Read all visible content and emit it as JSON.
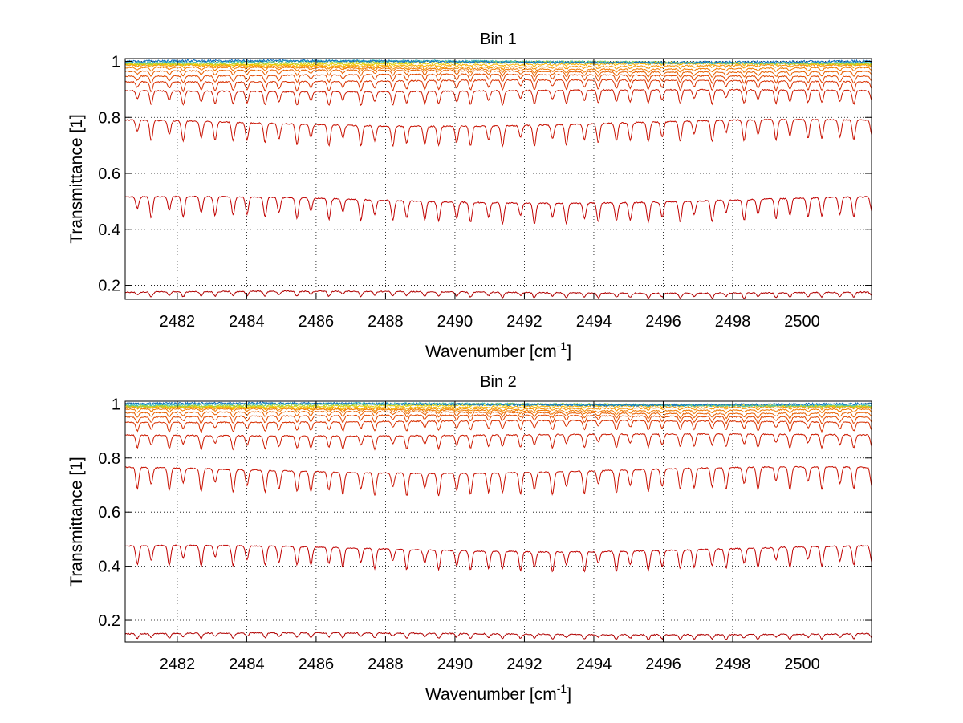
{
  "figure": {
    "chart_data": [
      {
        "type": "line",
        "title": "Bin 1",
        "xlabel": "Wavenumber [cm",
        "xlabel_superscript": "-1",
        "xlabel_suffix": "]",
        "ylabel": "Transmittance [1]",
        "xlim": [
          2480.5,
          2502.0
        ],
        "ylim": [
          0.15,
          1.01
        ],
        "xticks": [
          2482,
          2484,
          2486,
          2488,
          2490,
          2492,
          2494,
          2496,
          2498,
          2500
        ],
        "yticks": [
          0.2,
          0.4,
          0.6,
          0.8,
          1
        ],
        "ytick_labels": [
          "0.2",
          "0.4",
          "0.6",
          "0.8",
          "1"
        ],
        "grid": true,
        "line_spacing_cm1": 0.92,
        "series": [
          {
            "color": "#b00000",
            "baseline": 0.175,
            "dip_depth": 0.018,
            "noise": 0.002
          },
          {
            "color": "#c00000",
            "baseline": 0.505,
            "dip_depth": 0.075,
            "noise": 0.002
          },
          {
            "color": "#c81000",
            "baseline": 0.78,
            "dip_depth": 0.075,
            "noise": 0.002
          },
          {
            "color": "#cc1a00",
            "baseline": 0.895,
            "dip_depth": 0.05,
            "noise": 0.002
          },
          {
            "color": "#d83000",
            "baseline": 0.93,
            "dip_depth": 0.035,
            "noise": 0.002
          },
          {
            "color": "#e04800",
            "baseline": 0.95,
            "dip_depth": 0.025,
            "noise": 0.002
          },
          {
            "color": "#e86000",
            "baseline": 0.965,
            "dip_depth": 0.018,
            "noise": 0.002
          },
          {
            "color": "#f07800",
            "baseline": 0.975,
            "dip_depth": 0.012,
            "noise": 0.002
          },
          {
            "color": "#f59000",
            "baseline": 0.983,
            "dip_depth": 0.008,
            "noise": 0.003
          },
          {
            "color": "#f8b000",
            "baseline": 0.989,
            "dip_depth": 0.005,
            "noise": 0.003
          },
          {
            "color": "#e8d000",
            "baseline": 0.993,
            "dip_depth": 0.003,
            "noise": 0.003
          },
          {
            "color": "#a0d040",
            "baseline": 0.996,
            "dip_depth": 0.002,
            "noise": 0.004
          },
          {
            "color": "#40c0c0",
            "baseline": 0.998,
            "dip_depth": 0.001,
            "noise": 0.004
          },
          {
            "color": "#1070c0",
            "baseline": 0.999,
            "dip_depth": 0.0,
            "noise": 0.004
          }
        ]
      },
      {
        "type": "line",
        "title": "Bin 2",
        "xlabel": "Wavenumber [cm",
        "xlabel_superscript": "-1",
        "xlabel_suffix": "]",
        "ylabel": "Transmittance [1]",
        "xlim": [
          2480.5,
          2502.0
        ],
        "ylim": [
          0.12,
          1.01
        ],
        "xticks": [
          2482,
          2484,
          2486,
          2488,
          2490,
          2492,
          2494,
          2496,
          2498,
          2500
        ],
        "yticks": [
          0.2,
          0.4,
          0.6,
          0.8,
          1
        ],
        "ytick_labels": [
          "0.2",
          "0.4",
          "0.6",
          "0.8",
          "1"
        ],
        "grid": true,
        "line_spacing_cm1": 0.92,
        "series": [
          {
            "color": "#b00000",
            "baseline": 0.15,
            "dip_depth": 0.018,
            "noise": 0.002
          },
          {
            "color": "#c00000",
            "baseline": 0.465,
            "dip_depth": 0.075,
            "noise": 0.002
          },
          {
            "color": "#c81000",
            "baseline": 0.755,
            "dip_depth": 0.085,
            "noise": 0.002
          },
          {
            "color": "#cc1a00",
            "baseline": 0.885,
            "dip_depth": 0.05,
            "noise": 0.002
          },
          {
            "color": "#d83000",
            "baseline": 0.935,
            "dip_depth": 0.035,
            "noise": 0.002
          },
          {
            "color": "#e04800",
            "baseline": 0.955,
            "dip_depth": 0.025,
            "noise": 0.002
          },
          {
            "color": "#e86000",
            "baseline": 0.968,
            "dip_depth": 0.018,
            "noise": 0.002
          },
          {
            "color": "#f07800",
            "baseline": 0.978,
            "dip_depth": 0.012,
            "noise": 0.002
          },
          {
            "color": "#f59000",
            "baseline": 0.985,
            "dip_depth": 0.008,
            "noise": 0.003
          },
          {
            "color": "#f8b000",
            "baseline": 0.99,
            "dip_depth": 0.005,
            "noise": 0.003
          },
          {
            "color": "#e8d000",
            "baseline": 0.994,
            "dip_depth": 0.003,
            "noise": 0.003
          },
          {
            "color": "#a0d040",
            "baseline": 0.996,
            "dip_depth": 0.002,
            "noise": 0.004
          },
          {
            "color": "#40c0c0",
            "baseline": 0.998,
            "dip_depth": 0.001,
            "noise": 0.004
          },
          {
            "color": "#1070c0",
            "baseline": 0.999,
            "dip_depth": 0.0,
            "noise": 0.004
          }
        ]
      }
    ]
  }
}
